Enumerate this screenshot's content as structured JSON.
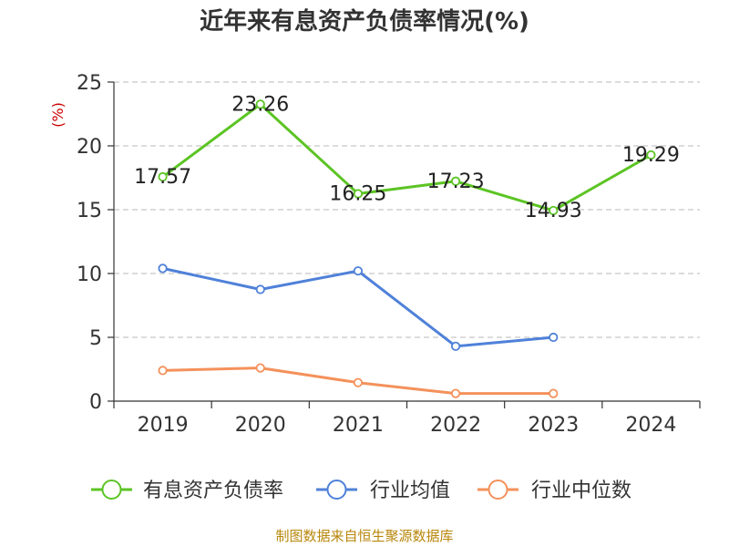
{
  "title": "近年来有息资产负债率情况(%)",
  "unit_label": "(%)",
  "source": "制图数据来自恒生聚源数据库",
  "chart_data": {
    "type": "line",
    "title": "近年来有息资产负债率情况(%)",
    "xlabel": "",
    "ylabel": "(%)",
    "categories": [
      "2019",
      "2020",
      "2021",
      "2022",
      "2023",
      "2024"
    ],
    "ylim": [
      0,
      25
    ],
    "yticks": [
      0,
      5,
      10,
      15,
      20,
      25
    ],
    "grid": true,
    "legend_position": "bottom",
    "series": [
      {
        "name": "有息资产负债率",
        "color": "#5cc424",
        "values": [
          17.57,
          23.26,
          16.25,
          17.23,
          14.93,
          19.29
        ],
        "labels": [
          "17.57",
          "23.26",
          "16.25",
          "17.23",
          "14.93",
          "19.29"
        ]
      },
      {
        "name": "行业均值",
        "color": "#4f81d9",
        "values": [
          10.4,
          8.75,
          10.2,
          4.3,
          5.0,
          null
        ]
      },
      {
        "name": "行业中位数",
        "color": "#f4915b",
        "values": [
          2.4,
          2.6,
          1.45,
          0.6,
          0.6,
          null
        ]
      }
    ]
  }
}
